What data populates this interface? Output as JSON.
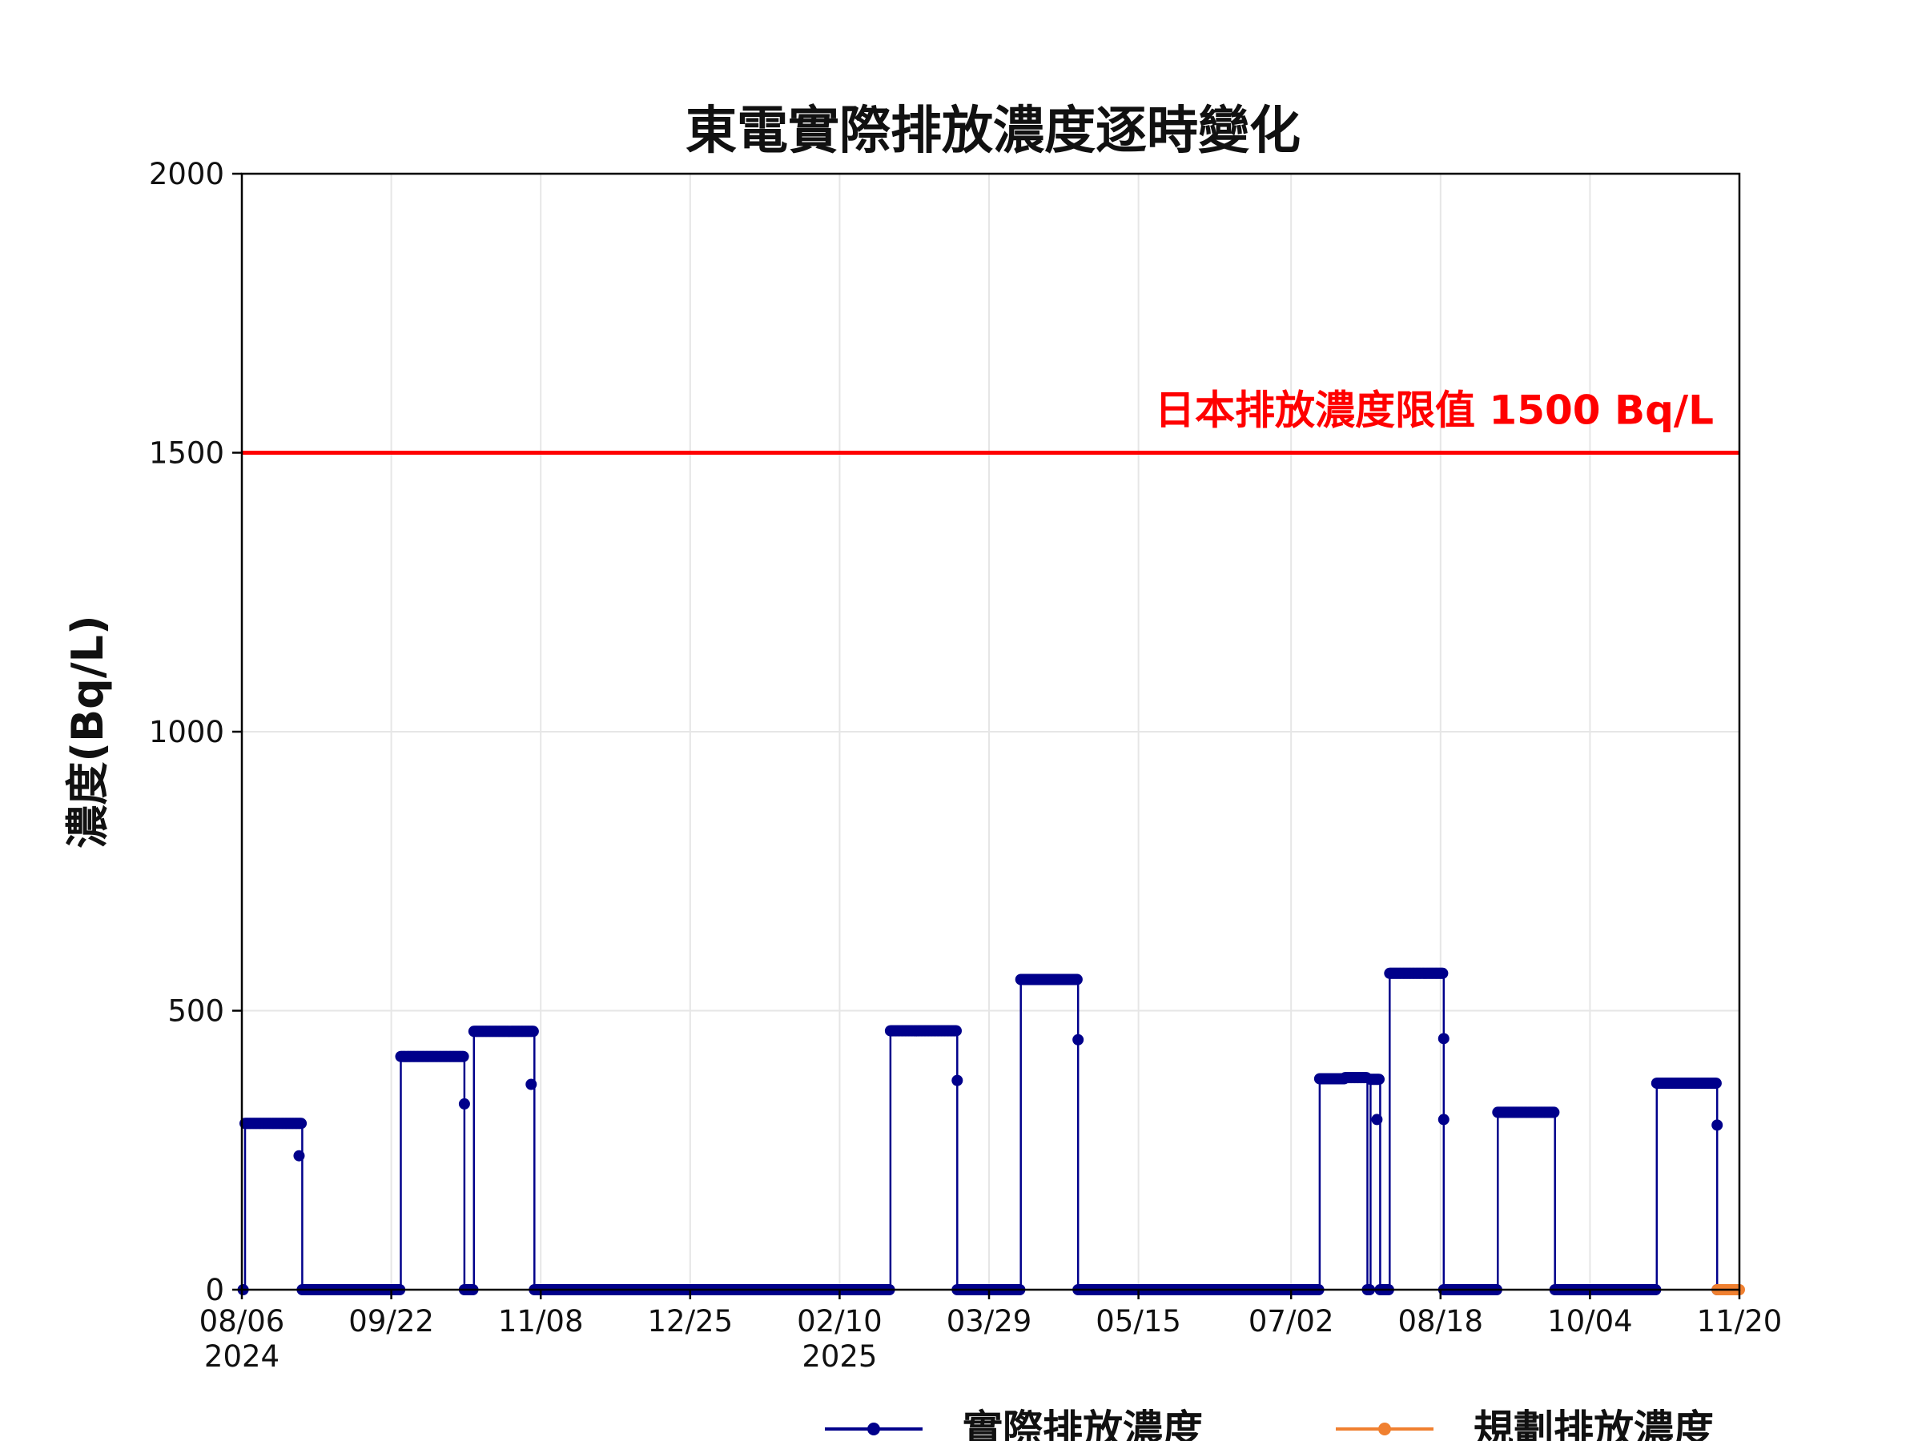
{
  "chart_data": {
    "type": "line",
    "title": "東電實際排放濃度逐時變化",
    "xlabel": "",
    "ylabel": "濃度(Bq/L)",
    "ylim": [
      0,
      2000
    ],
    "yticks": [
      0,
      500,
      1000,
      1500,
      2000
    ],
    "xlim": [
      "2024-08-06",
      "2025-11-20"
    ],
    "xticks": [
      {
        "date": "2024-08-06",
        "label": "08/06",
        "sublabel": "2024"
      },
      {
        "date": "2024-09-22",
        "label": "09/22",
        "sublabel": ""
      },
      {
        "date": "2024-11-08",
        "label": "11/08",
        "sublabel": ""
      },
      {
        "date": "2024-12-25",
        "label": "12/25",
        "sublabel": ""
      },
      {
        "date": "2025-02-10",
        "label": "02/10",
        "sublabel": "2025"
      },
      {
        "date": "2025-03-29",
        "label": "03/29",
        "sublabel": ""
      },
      {
        "date": "2025-05-15",
        "label": "05/15",
        "sublabel": ""
      },
      {
        "date": "2025-07-02",
        "label": "07/02",
        "sublabel": ""
      },
      {
        "date": "2025-08-18",
        "label": "08/18",
        "sublabel": ""
      },
      {
        "date": "2025-10-04",
        "label": "10/04",
        "sublabel": ""
      },
      {
        "date": "2025-11-20",
        "label": "11/20",
        "sublabel": ""
      }
    ],
    "grid": true,
    "legend_position": "bottom-center",
    "limit_line": {
      "value": 1500,
      "label": "日本排放濃度限值 1500 Bq/L",
      "color": "#ff0000"
    },
    "series": [
      {
        "name": "實際排放濃度",
        "color": "#00008b",
        "segments": [
          {
            "start": "2024-08-07",
            "end": "2024-08-24",
            "value": 298
          },
          {
            "start": "2024-09-25",
            "end": "2024-10-14",
            "value": 418
          },
          {
            "start": "2024-10-18",
            "end": "2024-11-05",
            "value": 463
          },
          {
            "start": "2025-02-26",
            "end": "2025-03-18",
            "value": 464
          },
          {
            "start": "2025-04-08",
            "end": "2025-04-25",
            "value": 556
          },
          {
            "start": "2025-07-11",
            "end": "2025-07-18",
            "value": 378
          },
          {
            "start": "2025-07-19",
            "end": "2025-07-25",
            "value": 380
          },
          {
            "start": "2025-07-27",
            "end": "2025-07-29",
            "value": 377
          },
          {
            "start": "2025-08-02",
            "end": "2025-08-18",
            "value": 567
          },
          {
            "start": "2025-09-05",
            "end": "2025-09-22",
            "value": 318
          },
          {
            "start": "2025-10-25",
            "end": "2025-11-12",
            "value": 370
          }
        ],
        "transitions": [
          {
            "date": "2024-08-24",
            "value": 240
          },
          {
            "date": "2024-10-15",
            "value": 333
          },
          {
            "date": "2024-11-05",
            "value": 368
          },
          {
            "date": "2025-03-19",
            "value": 375
          },
          {
            "date": "2025-04-26",
            "value": 448
          },
          {
            "date": "2025-07-29",
            "value": 305
          },
          {
            "date": "2025-08-19",
            "value": 450
          },
          {
            "date": "2025-08-19",
            "value": 305
          },
          {
            "date": "2025-11-13",
            "value": 295
          }
        ]
      },
      {
        "name": "規劃排放濃度",
        "color": "#f08030",
        "range": [
          "2025-11-13",
          "2025-11-20"
        ],
        "value": 0
      }
    ]
  }
}
